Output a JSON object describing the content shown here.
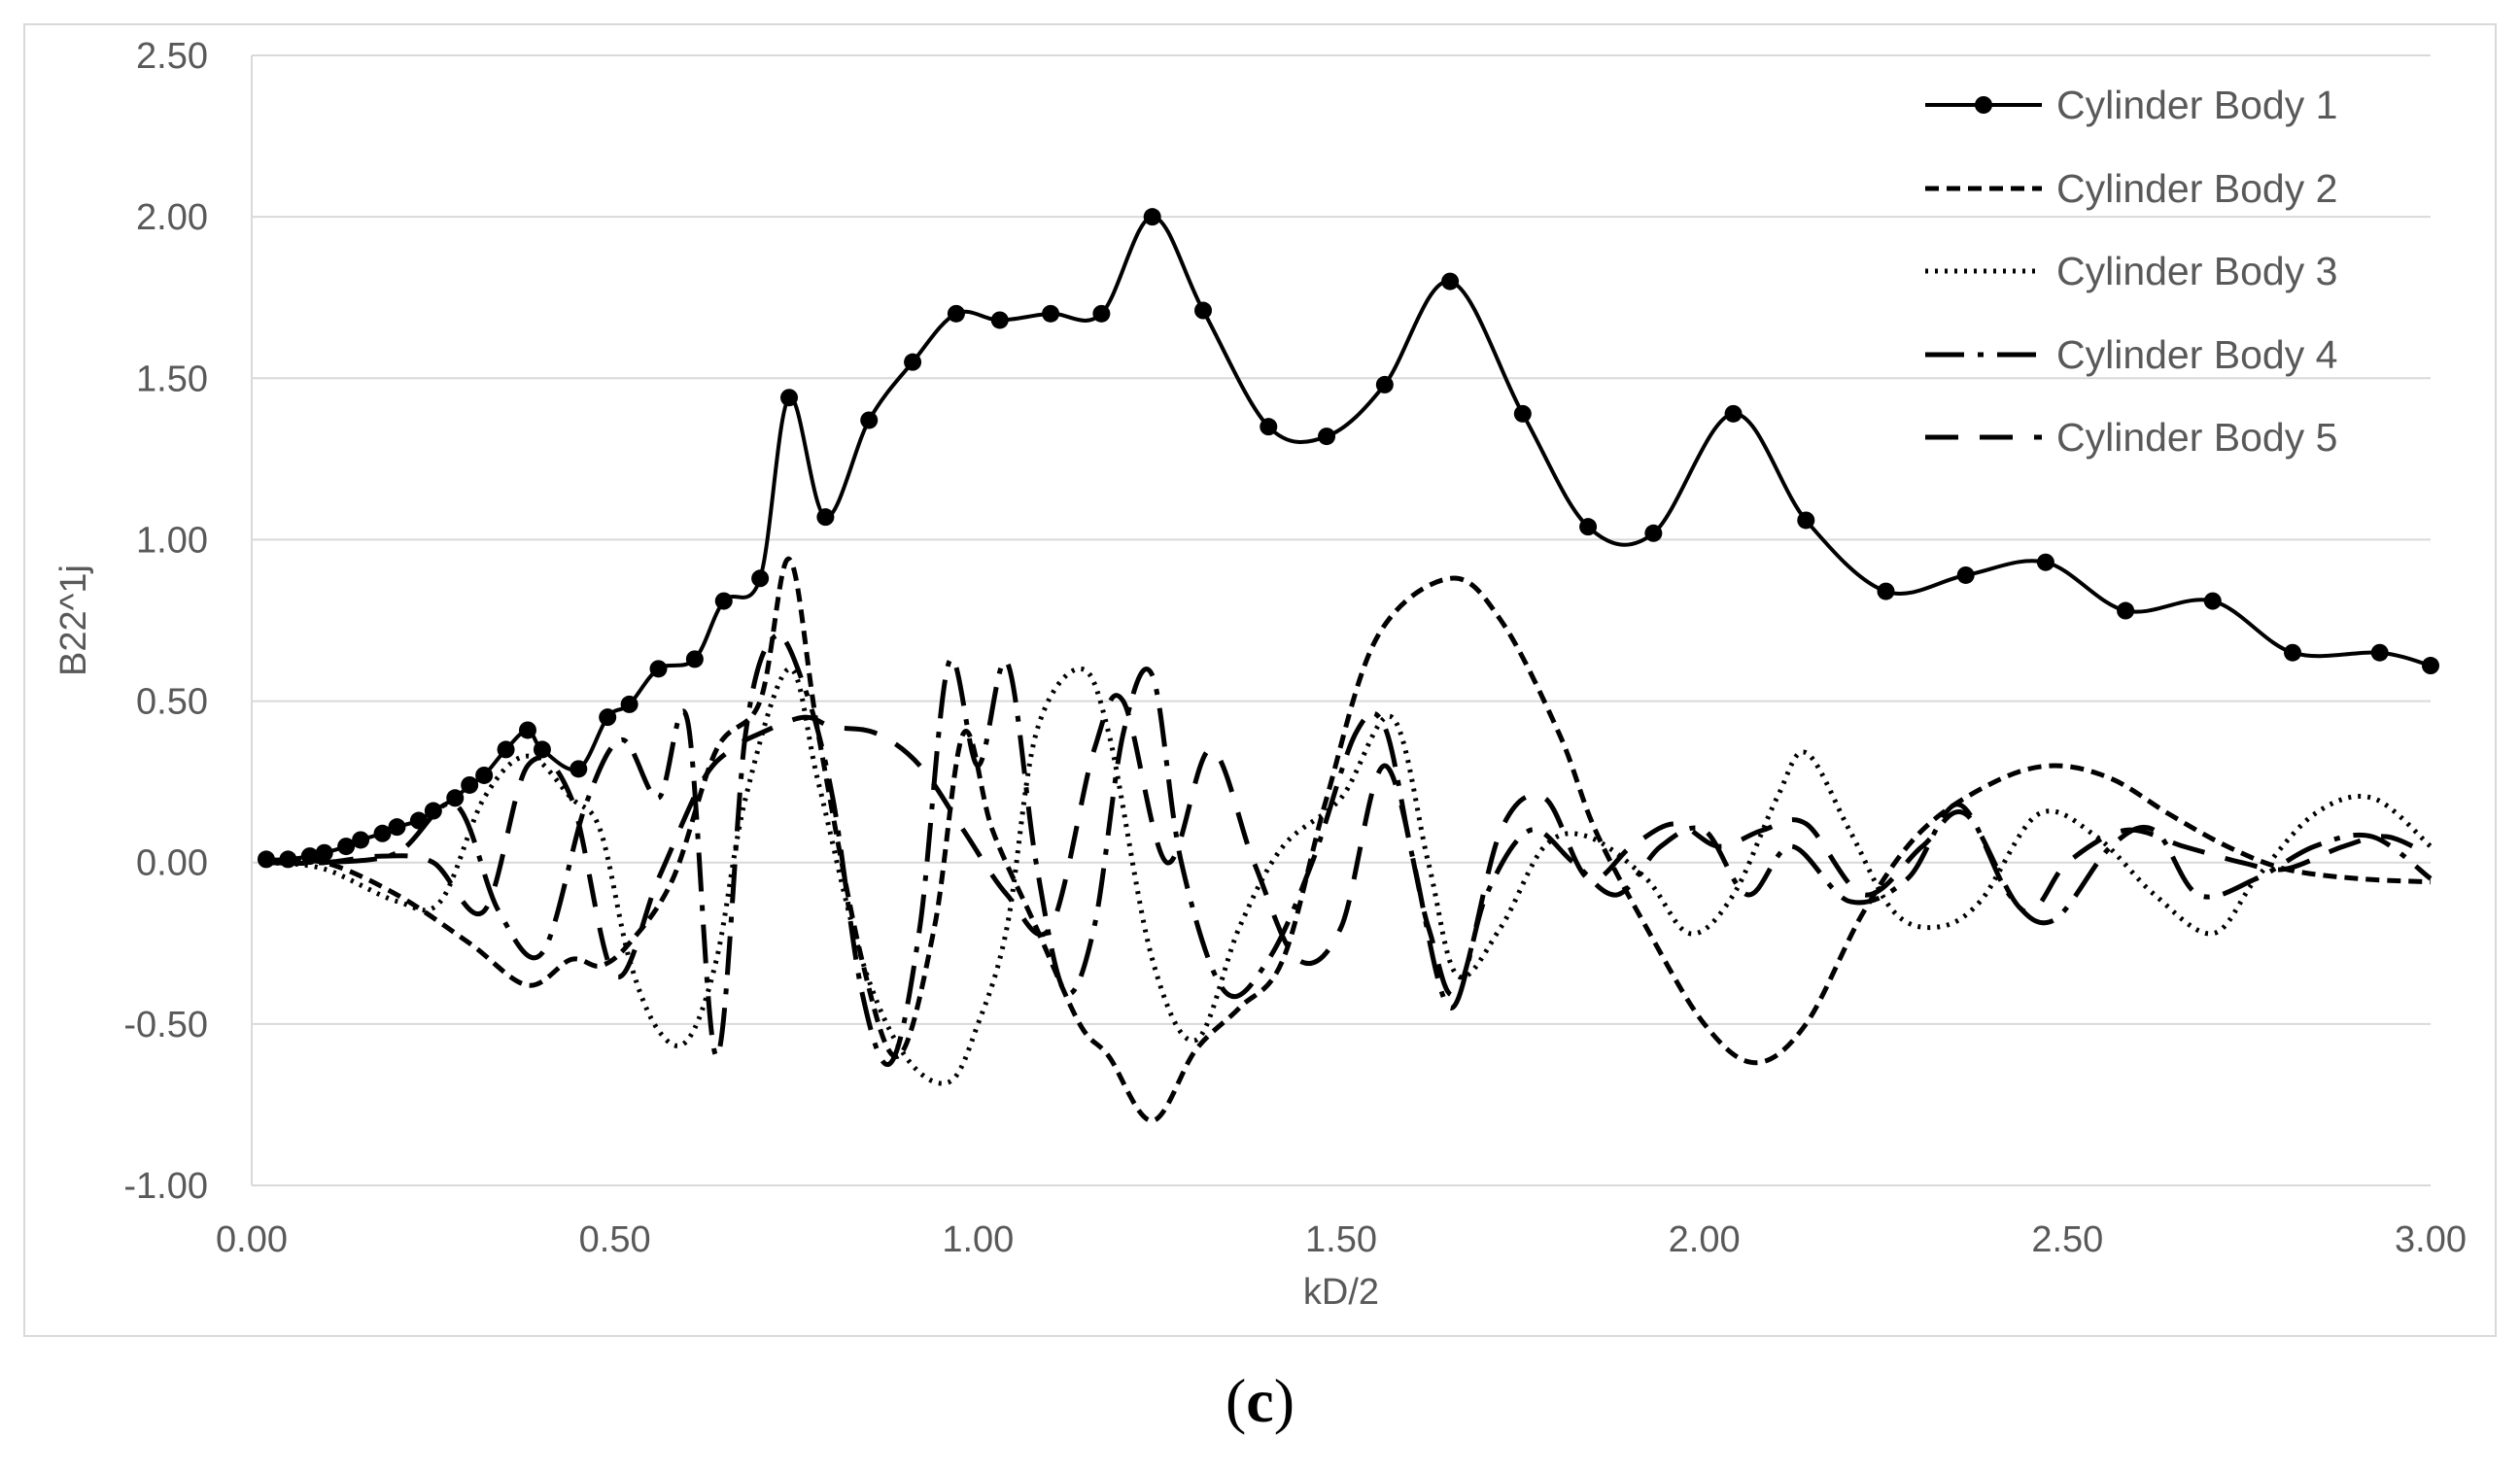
{
  "caption": {
    "open": "(",
    "letter": "c",
    "close": ")"
  },
  "chart_data": {
    "type": "line",
    "xlabel": "kD/2",
    "ylabel": "B22^1j",
    "xlim": [
      0,
      3
    ],
    "ylim": [
      -1,
      2.5
    ],
    "x_ticks": [
      "0.00",
      "0.50",
      "1.00",
      "1.50",
      "2.00",
      "2.50",
      "3.00"
    ],
    "y_ticks": [
      "-1.00",
      "-0.50",
      "0.00",
      "0.50",
      "1.00",
      "1.50",
      "2.00",
      "2.50"
    ],
    "grid": "horizontal",
    "legend_position": "top-right",
    "series": [
      {
        "name": "Cylinder Body 1",
        "style": "solid-marker",
        "color": "#000000",
        "points": [
          [
            0.02,
            0.01
          ],
          [
            0.05,
            0.01
          ],
          [
            0.08,
            0.02
          ],
          [
            0.1,
            0.03
          ],
          [
            0.13,
            0.05
          ],
          [
            0.15,
            0.07
          ],
          [
            0.18,
            0.09
          ],
          [
            0.2,
            0.11
          ],
          [
            0.23,
            0.13
          ],
          [
            0.25,
            0.16
          ],
          [
            0.28,
            0.2
          ],
          [
            0.3,
            0.24
          ],
          [
            0.32,
            0.27
          ],
          [
            0.35,
            0.35
          ],
          [
            0.38,
            0.41
          ],
          [
            0.4,
            0.35
          ],
          [
            0.45,
            0.29
          ],
          [
            0.49,
            0.45
          ],
          [
            0.52,
            0.49
          ],
          [
            0.56,
            0.6
          ],
          [
            0.61,
            0.63
          ],
          [
            0.65,
            0.81
          ],
          [
            0.7,
            0.88
          ],
          [
            0.74,
            1.44
          ],
          [
            0.79,
            1.07
          ],
          [
            0.85,
            1.37
          ],
          [
            0.91,
            1.55
          ],
          [
            0.97,
            1.7
          ],
          [
            1.03,
            1.68
          ],
          [
            1.1,
            1.7
          ],
          [
            1.17,
            1.7
          ],
          [
            1.24,
            2.0
          ],
          [
            1.31,
            1.71
          ],
          [
            1.4,
            1.35
          ],
          [
            1.48,
            1.32
          ],
          [
            1.56,
            1.48
          ],
          [
            1.65,
            1.8
          ],
          [
            1.75,
            1.39
          ],
          [
            1.84,
            1.04
          ],
          [
            1.93,
            1.02
          ],
          [
            2.04,
            1.39
          ],
          [
            2.14,
            1.06
          ],
          [
            2.25,
            0.84
          ],
          [
            2.36,
            0.89
          ],
          [
            2.47,
            0.93
          ],
          [
            2.58,
            0.78
          ],
          [
            2.7,
            0.81
          ],
          [
            2.81,
            0.65
          ],
          [
            2.93,
            0.65
          ],
          [
            3.0,
            0.61
          ]
        ]
      },
      {
        "name": "Cylinder Body 2",
        "style": "short-dash",
        "color": "#000000",
        "points": [
          [
            0.02,
            0.0
          ],
          [
            0.1,
            0.0
          ],
          [
            0.2,
            -0.1
          ],
          [
            0.3,
            -0.25
          ],
          [
            0.38,
            -0.38
          ],
          [
            0.44,
            -0.3
          ],
          [
            0.48,
            -0.32
          ],
          [
            0.52,
            -0.25
          ],
          [
            0.58,
            -0.05
          ],
          [
            0.64,
            0.35
          ],
          [
            0.7,
            0.5
          ],
          [
            0.74,
            0.94
          ],
          [
            0.78,
            0.4
          ],
          [
            0.84,
            -0.3
          ],
          [
            0.89,
            -0.6
          ],
          [
            0.94,
            -0.2
          ],
          [
            0.98,
            0.4
          ],
          [
            1.02,
            0.1
          ],
          [
            1.08,
            -0.2
          ],
          [
            1.14,
            -0.5
          ],
          [
            1.18,
            -0.6
          ],
          [
            1.24,
            -0.8
          ],
          [
            1.3,
            -0.58
          ],
          [
            1.36,
            -0.45
          ],
          [
            1.42,
            -0.3
          ],
          [
            1.48,
            0.2
          ],
          [
            1.55,
            0.7
          ],
          [
            1.65,
            0.88
          ],
          [
            1.72,
            0.75
          ],
          [
            1.8,
            0.4
          ],
          [
            1.85,
            0.1
          ],
          [
            1.92,
            -0.2
          ],
          [
            2.0,
            -0.5
          ],
          [
            2.07,
            -0.62
          ],
          [
            2.14,
            -0.5
          ],
          [
            2.22,
            -0.15
          ],
          [
            2.3,
            0.1
          ],
          [
            2.4,
            0.25
          ],
          [
            2.48,
            0.3
          ],
          [
            2.56,
            0.26
          ],
          [
            2.64,
            0.15
          ],
          [
            2.72,
            0.05
          ],
          [
            2.8,
            -0.02
          ],
          [
            2.9,
            -0.05
          ],
          [
            3.0,
            -0.06
          ]
        ]
      },
      {
        "name": "Cylinder Body 3",
        "style": "dotted",
        "color": "#000000",
        "points": [
          [
            0.02,
            0.0
          ],
          [
            0.1,
            -0.02
          ],
          [
            0.2,
            -0.12
          ],
          [
            0.26,
            -0.12
          ],
          [
            0.32,
            0.2
          ],
          [
            0.38,
            0.33
          ],
          [
            0.44,
            0.2
          ],
          [
            0.48,
            0.1
          ],
          [
            0.52,
            -0.3
          ],
          [
            0.56,
            -0.52
          ],
          [
            0.6,
            -0.55
          ],
          [
            0.64,
            -0.3
          ],
          [
            0.68,
            0.2
          ],
          [
            0.74,
            0.6
          ],
          [
            0.78,
            0.25
          ],
          [
            0.84,
            -0.3
          ],
          [
            0.9,
            -0.6
          ],
          [
            0.96,
            -0.68
          ],
          [
            1.0,
            -0.5
          ],
          [
            1.04,
            -0.2
          ],
          [
            1.08,
            0.4
          ],
          [
            1.14,
            0.6
          ],
          [
            1.18,
            0.4
          ],
          [
            1.24,
            -0.3
          ],
          [
            1.3,
            -0.55
          ],
          [
            1.36,
            -0.2
          ],
          [
            1.42,
            0.05
          ],
          [
            1.5,
            0.2
          ],
          [
            1.57,
            0.45
          ],
          [
            1.62,
            0.0
          ],
          [
            1.66,
            -0.35
          ],
          [
            1.72,
            -0.2
          ],
          [
            1.78,
            0.05
          ],
          [
            1.84,
            0.08
          ],
          [
            1.92,
            -0.05
          ],
          [
            1.98,
            -0.22
          ],
          [
            2.04,
            -0.1
          ],
          [
            2.1,
            0.2
          ],
          [
            2.14,
            0.34
          ],
          [
            2.2,
            0.1
          ],
          [
            2.26,
            -0.15
          ],
          [
            2.32,
            -0.2
          ],
          [
            2.38,
            -0.12
          ],
          [
            2.46,
            0.15
          ],
          [
            2.54,
            0.08
          ],
          [
            2.62,
            -0.1
          ],
          [
            2.7,
            -0.22
          ],
          [
            2.76,
            -0.05
          ],
          [
            2.84,
            0.15
          ],
          [
            2.92,
            0.2
          ],
          [
            3.0,
            0.05
          ]
        ]
      },
      {
        "name": "Cylinder Body 4",
        "style": "long-dash-dot",
        "color": "#000000",
        "points": [
          [
            0.02,
            0.0
          ],
          [
            0.1,
            0.0
          ],
          [
            0.2,
            0.03
          ],
          [
            0.28,
            0.18
          ],
          [
            0.34,
            -0.15
          ],
          [
            0.4,
            -0.28
          ],
          [
            0.46,
            0.18
          ],
          [
            0.51,
            0.38
          ],
          [
            0.56,
            0.2
          ],
          [
            0.6,
            0.44
          ],
          [
            0.64,
            -0.6
          ],
          [
            0.68,
            0.4
          ],
          [
            0.72,
            0.7
          ],
          [
            0.76,
            0.55
          ],
          [
            0.8,
            0.2
          ],
          [
            0.84,
            -0.4
          ],
          [
            0.88,
            -0.62
          ],
          [
            0.92,
            -0.2
          ],
          [
            0.96,
            0.62
          ],
          [
            1.0,
            0.3
          ],
          [
            1.04,
            0.62
          ],
          [
            1.08,
            0.0
          ],
          [
            1.12,
            -0.4
          ],
          [
            1.16,
            -0.2
          ],
          [
            1.2,
            0.4
          ],
          [
            1.24,
            0.58
          ],
          [
            1.28,
            0.0
          ],
          [
            1.34,
            -0.4
          ],
          [
            1.4,
            -0.3
          ],
          [
            1.46,
            0.0
          ],
          [
            1.52,
            0.4
          ],
          [
            1.56,
            0.42
          ],
          [
            1.6,
            0.0
          ],
          [
            1.65,
            -0.45
          ],
          [
            1.7,
            -0.1
          ],
          [
            1.76,
            0.1
          ],
          [
            1.82,
            0.0
          ],
          [
            1.88,
            -0.1
          ],
          [
            1.94,
            0.05
          ],
          [
            2.0,
            0.1
          ],
          [
            2.06,
            -0.1
          ],
          [
            2.12,
            0.05
          ],
          [
            2.2,
            -0.12
          ],
          [
            2.28,
            -0.05
          ],
          [
            2.35,
            0.18
          ],
          [
            2.42,
            -0.1
          ],
          [
            2.48,
            -0.18
          ],
          [
            2.56,
            0.05
          ],
          [
            2.62,
            0.1
          ],
          [
            2.68,
            -0.1
          ],
          [
            2.76,
            -0.05
          ],
          [
            2.84,
            0.05
          ],
          [
            2.92,
            0.08
          ],
          [
            3.0,
            -0.05
          ]
        ]
      },
      {
        "name": "Cylinder Body 5",
        "style": "long-dash",
        "color": "#000000",
        "points": [
          [
            0.02,
            0.0
          ],
          [
            0.1,
            0.0
          ],
          [
            0.18,
            0.02
          ],
          [
            0.25,
            0.0
          ],
          [
            0.32,
            -0.15
          ],
          [
            0.38,
            0.3
          ],
          [
            0.44,
            0.2
          ],
          [
            0.5,
            -0.35
          ],
          [
            0.56,
            -0.05
          ],
          [
            0.62,
            0.25
          ],
          [
            0.66,
            0.35
          ],
          [
            0.7,
            0.4
          ],
          [
            0.76,
            0.45
          ],
          [
            0.8,
            0.42
          ],
          [
            0.86,
            0.4
          ],
          [
            0.92,
            0.3
          ],
          [
            0.98,
            0.1
          ],
          [
            1.04,
            -0.1
          ],
          [
            1.1,
            -0.2
          ],
          [
            1.16,
            0.35
          ],
          [
            1.2,
            0.5
          ],
          [
            1.26,
            0.0
          ],
          [
            1.32,
            0.35
          ],
          [
            1.38,
            0.0
          ],
          [
            1.44,
            -0.3
          ],
          [
            1.5,
            -0.2
          ],
          [
            1.56,
            0.3
          ],
          [
            1.62,
            -0.2
          ],
          [
            1.66,
            -0.4
          ],
          [
            1.72,
            0.1
          ],
          [
            1.78,
            0.2
          ],
          [
            1.84,
            -0.05
          ],
          [
            1.9,
            0.05
          ],
          [
            1.96,
            0.12
          ],
          [
            2.02,
            0.05
          ],
          [
            2.08,
            0.1
          ],
          [
            2.14,
            0.12
          ],
          [
            2.22,
            -0.1
          ],
          [
            2.3,
            0.05
          ],
          [
            2.36,
            0.15
          ],
          [
            2.44,
            -0.15
          ],
          [
            2.5,
            0.0
          ],
          [
            2.58,
            0.1
          ],
          [
            2.66,
            0.05
          ],
          [
            2.74,
            0.0
          ],
          [
            2.8,
            -0.02
          ],
          [
            2.88,
            0.05
          ],
          [
            2.94,
            0.08
          ],
          [
            3.0,
            0.02
          ]
        ]
      }
    ]
  }
}
